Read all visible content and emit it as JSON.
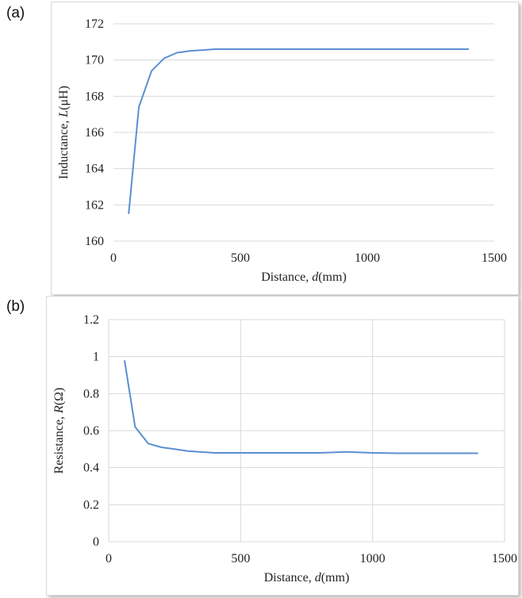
{
  "panels": [
    {
      "label": "(a)"
    },
    {
      "label": "(b)"
    }
  ],
  "chart_data": [
    {
      "type": "line",
      "title": "",
      "xlabel": {
        "prefix": "Distance, ",
        "var": "d",
        "suffix": "(mm)"
      },
      "ylabel": {
        "prefix": "Inductance, ",
        "var": "L",
        "suffix": "(μH)"
      },
      "xlim": [
        0,
        1500
      ],
      "ylim": [
        160,
        172
      ],
      "xticks": [
        "0",
        "500",
        "1000",
        "1500"
      ],
      "yticks": [
        "160",
        "162",
        "164",
        "166",
        "168",
        "170",
        "172"
      ],
      "grid": "horizontal",
      "line_color": "#5b8fd1",
      "x": [
        60,
        100,
        150,
        200,
        250,
        300,
        400,
        500,
        600,
        700,
        800,
        900,
        1000,
        1100,
        1200,
        1300,
        1400
      ],
      "y": [
        161.5,
        167.4,
        169.4,
        170.1,
        170.4,
        170.5,
        170.6,
        170.6,
        170.6,
        170.6,
        170.6,
        170.6,
        170.6,
        170.6,
        170.6,
        170.6,
        170.6
      ]
    },
    {
      "type": "line",
      "title": "",
      "xlabel": {
        "prefix": "Distance, ",
        "var": "d",
        "suffix": "(mm)"
      },
      "ylabel": {
        "prefix": "Resistance, ",
        "var": "R",
        "suffix": "(Ω)"
      },
      "xlim": [
        0,
        1500
      ],
      "ylim": [
        0,
        1.2
      ],
      "xticks": [
        "0",
        "500",
        "1000",
        "1500"
      ],
      "yticks": [
        "0",
        "0.2",
        "0.4",
        "0.6",
        "0.8",
        "1",
        "1.2"
      ],
      "grid": "both",
      "line_color": "#5b8fd1",
      "x": [
        60,
        100,
        150,
        200,
        250,
        300,
        400,
        500,
        600,
        700,
        800,
        900,
        1000,
        1100,
        1200,
        1300,
        1400
      ],
      "y": [
        0.98,
        0.62,
        0.53,
        0.51,
        0.5,
        0.49,
        0.48,
        0.48,
        0.48,
        0.48,
        0.48,
        0.485,
        0.48,
        0.478,
        0.478,
        0.478,
        0.478
      ]
    }
  ]
}
